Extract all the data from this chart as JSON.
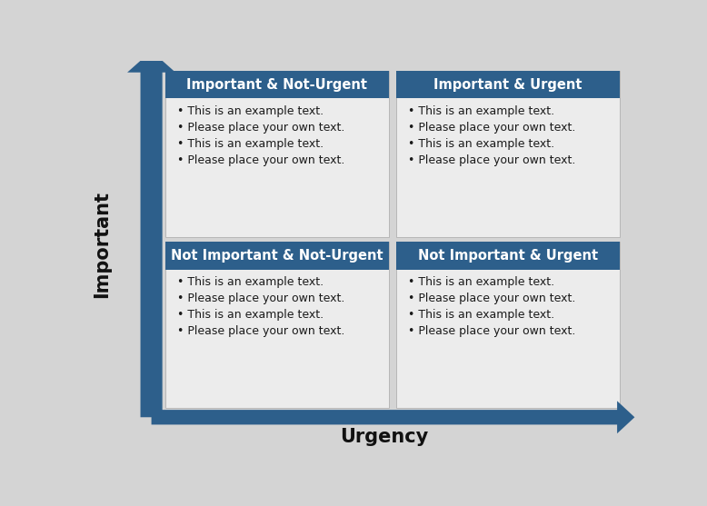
{
  "background_color": "#d4d4d4",
  "figure_bg": "#d4d4d4",
  "quadrant_bg": "#ececec",
  "header_color": "#2d5f8b",
  "header_text_color": "#ffffff",
  "body_text_color": "#1a1a1a",
  "arrow_color": "#2d5f8b",
  "quadrants": [
    {
      "title": "Important & Not-Urgent",
      "col": 0,
      "row": 1,
      "bullet_lines": [
        "This is an example text.",
        "Please place your own text.",
        "This is an example text.",
        "Please place your own text."
      ]
    },
    {
      "title": "Important & Urgent",
      "col": 1,
      "row": 1,
      "bullet_lines": [
        "This is an example text.",
        "Please place your own text.",
        "This is an example text.",
        "Please place your own text."
      ]
    },
    {
      "title": "Not Important & Not-Urgent",
      "col": 0,
      "row": 0,
      "bullet_lines": [
        "This is an example text.",
        "Please place your own text.",
        "This is an example text.",
        "Please place your own text."
      ]
    },
    {
      "title": "Not Important & Urgent",
      "col": 1,
      "row": 0,
      "bullet_lines": [
        "This is an example text.",
        "Please place your own text.",
        "This is an example text.",
        "Please place your own text."
      ]
    }
  ],
  "xlabel": "Urgency",
  "ylabel": "Important",
  "xlabel_fontsize": 15,
  "ylabel_fontsize": 15,
  "header_fontsize": 10.5,
  "body_fontsize": 9
}
